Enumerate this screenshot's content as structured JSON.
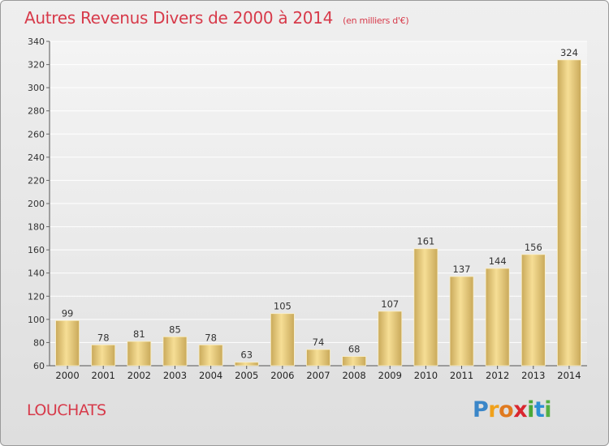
{
  "title": "Autres Revenus Divers de 2000 à 2014",
  "subtitle": "(en milliers d'€)",
  "location": "LOUCHATS",
  "logo": {
    "letters": [
      "P",
      "r",
      "o",
      "x",
      "i",
      "t",
      "i"
    ],
    "colors": [
      "#3a86c8",
      "#f0a11b",
      "#e07a1f",
      "#d9262f",
      "#4aa838",
      "#2e8fd4",
      "#55b043"
    ]
  },
  "colors": {
    "title": "#d73a4a",
    "bar_light": "#f6de95",
    "bar_dark": "#c9a95a",
    "background": "#e6e6e6"
  },
  "chart_data": {
    "type": "bar",
    "title": "Autres Revenus Divers de 2000 à 2014",
    "subtitle": "(en milliers d'€)",
    "categories": [
      "2000",
      "2001",
      "2002",
      "2003",
      "2004",
      "2005",
      "2006",
      "2007",
      "2008",
      "2009",
      "2010",
      "2011",
      "2012",
      "2013",
      "2014"
    ],
    "values": [
      99,
      78,
      81,
      85,
      78,
      63,
      105,
      74,
      68,
      107,
      161,
      137,
      144,
      156,
      324
    ],
    "ylim": [
      60,
      340
    ],
    "yticks": [
      60,
      80,
      100,
      120,
      140,
      160,
      180,
      200,
      220,
      240,
      260,
      280,
      300,
      320,
      340
    ],
    "grid": true,
    "xlabel": "",
    "ylabel": ""
  }
}
